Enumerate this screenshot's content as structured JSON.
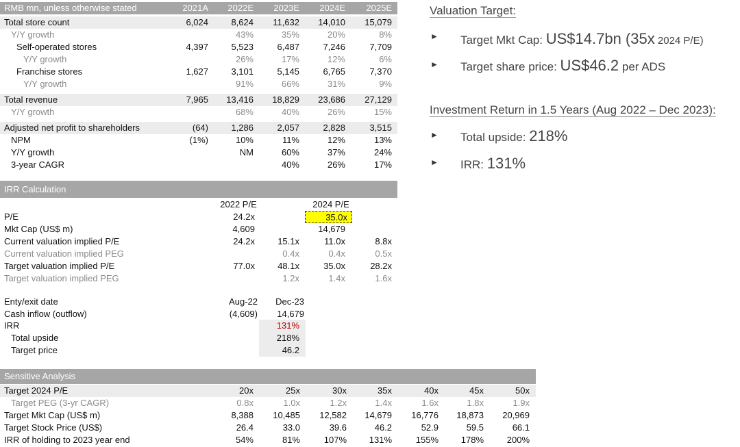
{
  "top_table": {
    "header": {
      "label": "RMB mn, unless otherwise stated",
      "years": [
        "2021A",
        "2022E",
        "2023E",
        "2024E",
        "2025E"
      ]
    },
    "rows": [
      {
        "label": "Total store count",
        "values": [
          "6,024",
          "8,624",
          "11,632",
          "14,010",
          "15,079"
        ],
        "style": "bold-shaded"
      },
      {
        "label": "Y/Y growth",
        "values": [
          "",
          "43%",
          "35%",
          "20%",
          "8%"
        ],
        "style": "grey"
      },
      {
        "label": "Self-operated stores",
        "values": [
          "4,397",
          "5,523",
          "6,487",
          "7,246",
          "7,709"
        ],
        "style": "indent"
      },
      {
        "label": "Y/Y growth",
        "values": [
          "",
          "26%",
          "17%",
          "12%",
          "6%"
        ],
        "style": "grey-indent"
      },
      {
        "label": "Franchise stores",
        "values": [
          "1,627",
          "3,101",
          "5,145",
          "6,765",
          "7,370"
        ],
        "style": "indent"
      },
      {
        "label": "Y/Y growth",
        "values": [
          "",
          "91%",
          "66%",
          "31%",
          "9%"
        ],
        "style": "grey-indent"
      },
      {
        "label": "Total revenue",
        "values": [
          "7,965",
          "13,416",
          "18,829",
          "23,686",
          "27,129"
        ],
        "style": "bold-shaded"
      },
      {
        "label": "Y/Y growth",
        "values": [
          "",
          "68%",
          "40%",
          "26%",
          "15%"
        ],
        "style": "grey"
      },
      {
        "label": "Adjusted net profit to shareholders",
        "values": [
          "(64)",
          "1,286",
          "2,057",
          "2,828",
          "3,515"
        ],
        "style": "bold-shaded"
      },
      {
        "label": "NPM",
        "values": [
          "(1%)",
          "10%",
          "11%",
          "12%",
          "13%"
        ],
        "style": "plain"
      },
      {
        "label": "Y/Y growth",
        "values": [
          "",
          "NM",
          "60%",
          "37%",
          "24%"
        ],
        "style": "plain"
      },
      {
        "label": "3-year CAGR",
        "values": [
          "",
          "",
          "40%",
          "26%",
          "17%"
        ],
        "style": "plain"
      }
    ]
  },
  "irr": {
    "title": "IRR Calculation",
    "col_heads": [
      "2022 P/E",
      "2024 P/E"
    ],
    "pe": {
      "label": "P/E",
      "v2022": "24.2x",
      "v2024": "35.0x"
    },
    "mktcap": {
      "label": "Mkt Cap (US$ m)",
      "v2022": "4,609",
      "v2024": "14,679"
    },
    "implied": [
      {
        "label": "Current valuation implied P/E",
        "values": [
          "24.2x",
          "15.1x",
          "11.0x",
          "8.8x"
        ],
        "style": "plain"
      },
      {
        "label": "Current valuation implied PEG",
        "values": [
          "",
          "0.4x",
          "0.4x",
          "0.5x"
        ],
        "style": "grey"
      },
      {
        "label": "Target valuation implied P/E",
        "values": [
          "77.0x",
          "48.1x",
          "35.0x",
          "28.2x"
        ],
        "style": "plain"
      },
      {
        "label": "Target valuation implied PEG",
        "values": [
          "",
          "1.2x",
          "1.4x",
          "1.6x"
        ],
        "style": "grey"
      }
    ],
    "entry": {
      "label": "Enty/exit date",
      "a": "Aug-22",
      "b": "Dec-23"
    },
    "cash": {
      "label": "Cash inflow (outflow)",
      "a": "(4,609)",
      "b": "14,679"
    },
    "irr": {
      "label": "IRR",
      "value": "131%"
    },
    "upside": {
      "label": "Total upside",
      "value": "218%"
    },
    "target_price": {
      "label": "Target price",
      "value": "46.2"
    }
  },
  "sensitivity": {
    "title": "Sensitive Analysis",
    "header": {
      "label": "Target 2024 P/E",
      "values": [
        "20x",
        "25x",
        "30x",
        "35x",
        "40x",
        "45x",
        "50x"
      ]
    },
    "rows": [
      {
        "label": "Target PEG (3-yr CAGR)",
        "values": [
          "0.8x",
          "1.0x",
          "1.2x",
          "1.4x",
          "1.6x",
          "1.8x",
          "1.9x"
        ],
        "style": "grey"
      },
      {
        "label": "Target Mkt Cap (US$ m)",
        "values": [
          "8,388",
          "10,485",
          "12,582",
          "14,679",
          "16,776",
          "18,873",
          "20,969"
        ],
        "style": "plain"
      },
      {
        "label": "Target Stock Price (US$)",
        "values": [
          "26.4",
          "33.0",
          "39.6",
          "46.2",
          "52.9",
          "59.5",
          "66.1"
        ],
        "style": "plain"
      },
      {
        "label": "IRR of holding to 2023 year end",
        "values": [
          "54%",
          "81%",
          "107%",
          "131%",
          "155%",
          "178%",
          "200%"
        ],
        "style": "plain"
      }
    ]
  },
  "panel": {
    "valuation_title": "Valuation Target:",
    "mktcap_label": "Target Mkt Cap: ",
    "mktcap_value": "US$14.7bn (35x",
    "mktcap_suffix": " 2024 P/E)",
    "price_label": "Target share price: ",
    "price_value": "US$46.2",
    "price_suffix": " per ADS",
    "return_title": "Investment Return in 1.5 Years (Aug 2022 – Dec 2023):",
    "upside_label": "Total upside: ",
    "upside_value": "218%",
    "irr_label": "IRR: ",
    "irr_value": "131%",
    "bullet_glyph": "►"
  }
}
